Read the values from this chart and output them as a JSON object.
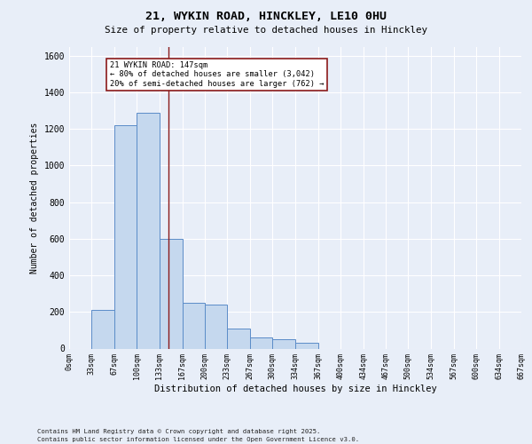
{
  "title1": "21, WYKIN ROAD, HINCKLEY, LE10 0HU",
  "title2": "Size of property relative to detached houses in Hinckley",
  "xlabel": "Distribution of detached houses by size in Hinckley",
  "ylabel": "Number of detached properties",
  "footnote1": "Contains HM Land Registry data © Crown copyright and database right 2025.",
  "footnote2": "Contains public sector information licensed under the Open Government Licence v3.0.",
  "annotation_title": "21 WYKIN ROAD: 147sqm",
  "annotation_line1": "← 80% of detached houses are smaller (3,042)",
  "annotation_line2": "20% of semi-detached houses are larger (762) →",
  "bar_color": "#c5d8ee",
  "bar_edge_color": "#5b8cc8",
  "bg_color": "#e8eef8",
  "fig_color": "#e8eef8",
  "grid_color": "#ffffff",
  "vline_color": "#8b1a1a",
  "vline_x": 147,
  "bin_edges": [
    0,
    33,
    67,
    100,
    133,
    167,
    200,
    233,
    267,
    300,
    334,
    367,
    400,
    434,
    467,
    500,
    534,
    567,
    600,
    634,
    667
  ],
  "bin_labels": [
    "0sqm",
    "33sqm",
    "67sqm",
    "100sqm",
    "133sqm",
    "167sqm",
    "200sqm",
    "233sqm",
    "267sqm",
    "300sqm",
    "334sqm",
    "367sqm",
    "400sqm",
    "434sqm",
    "467sqm",
    "500sqm",
    "534sqm",
    "567sqm",
    "600sqm",
    "634sqm",
    "667sqm"
  ],
  "counts": [
    0,
    210,
    1220,
    1290,
    600,
    250,
    240,
    110,
    60,
    50,
    30,
    0,
    0,
    0,
    0,
    0,
    0,
    0,
    0,
    0
  ],
  "ylim": [
    0,
    1650
  ],
  "yticks": [
    0,
    200,
    400,
    600,
    800,
    1000,
    1200,
    1400,
    1600
  ]
}
